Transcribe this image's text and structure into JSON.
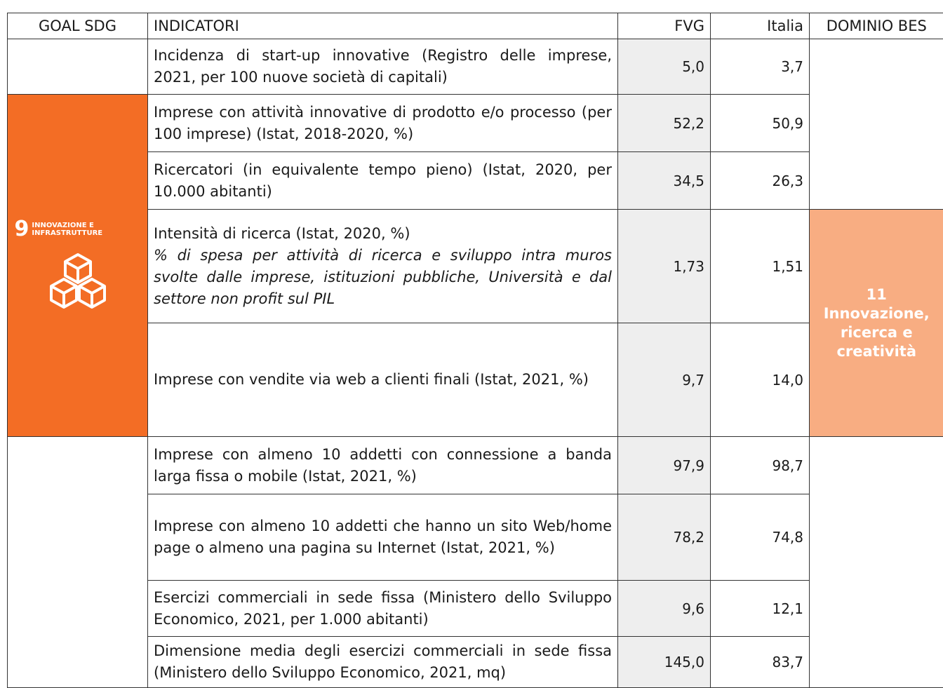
{
  "header": {
    "goal": "GOAL SDG",
    "indicators": "INDICATORI",
    "fvg": "FVG",
    "italia": "Italia",
    "domain": "DOMINIO BES"
  },
  "goal": {
    "number": "9",
    "label": [
      "INNOVAZIONE E",
      "INFRASTRUTTURE"
    ]
  },
  "domain": {
    "number": "11",
    "label": [
      "Innovazione,",
      "ricerca e",
      "creatività"
    ]
  },
  "rows": [
    {
      "indicator": "Incidenza di start-up innovative (Registro delle imprese, 2021, per 100 nuove società di capitali)",
      "fvg": "5,0",
      "italia": "3,7"
    },
    {
      "indicator": "Imprese con attività innovative di prodotto e/o processo (per 100 imprese) (Istat, 2018-2020, %)",
      "fvg": "52,2",
      "italia": "50,9"
    },
    {
      "indicator": "Ricercatori (in equivalente tempo pieno) (Istat, 2020, per 10.000 abitanti)",
      "fvg": "34,5",
      "italia": "26,3"
    },
    {
      "indicator": "Intensità di ricerca (Istat, 2020, %)",
      "note": "% di spesa per attività di ricerca e sviluppo intra muros svolte dalle imprese, istituzioni pubbliche, Università e dal settore non profit sul PIL",
      "fvg": "1,73",
      "italia": "1,51"
    },
    {
      "indicator": "Imprese con vendite via web a clienti finali (Istat, 2021, %)",
      "fvg": "9,7",
      "italia": "14,0"
    },
    {
      "indicator": "Imprese con almeno 10 addetti con connessione a banda larga fissa o mobile (Istat, 2021, %)",
      "fvg": "97,9",
      "italia": "98,7"
    },
    {
      "indicator": "Imprese con almeno 10 addetti che hanno un sito Web/home page o almeno una pagina su Internet (Istat, 2021, %)",
      "fvg": "78,2",
      "italia": "74,8"
    },
    {
      "indicator": "Esercizi commerciali in sede fissa (Ministero dello Sviluppo Economico, 2021, per 1.000 abitanti)",
      "fvg": "9,6",
      "italia": "12,1"
    },
    {
      "indicator": "Dimensione media degli esercizi commerciali in sede fissa (Ministero dello Sviluppo Economico, 2021, mq)",
      "fvg": "145,0",
      "italia": "83,7"
    }
  ]
}
